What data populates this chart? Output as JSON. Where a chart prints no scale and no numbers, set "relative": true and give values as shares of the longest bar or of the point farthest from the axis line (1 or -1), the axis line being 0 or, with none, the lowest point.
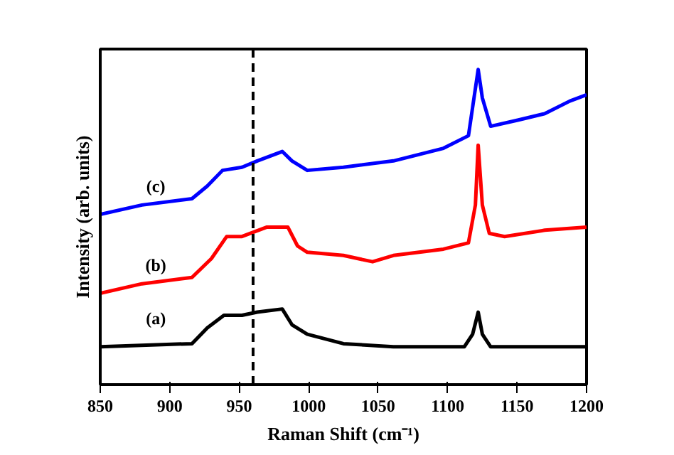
{
  "chart_data": {
    "type": "line",
    "relative": true,
    "xlabel": "Raman Shift (cm⁻¹)",
    "ylabel": "Intensity (arb. units)",
    "xlim": [
      850,
      1200
    ],
    "xticks": [
      850,
      900,
      950,
      1000,
      1050,
      1100,
      1150,
      1200
    ],
    "grid": false,
    "marker": "none",
    "line_style": "solid",
    "series": [
      {
        "name": "(a)",
        "color": "#000000",
        "x": [
          850,
          916,
          927,
          939,
          952,
          963,
          981,
          988,
          999,
          1025,
          1061,
          1112,
          1118,
          1122,
          1125,
          1131,
          1200
        ],
        "values": [
          0.12,
          0.13,
          0.18,
          0.22,
          0.22,
          0.23,
          0.24,
          0.19,
          0.16,
          0.13,
          0.12,
          0.12,
          0.16,
          0.23,
          0.16,
          0.12,
          0.12
        ]
      },
      {
        "name": "(b)",
        "color": "#ff0000",
        "x": [
          850,
          880,
          916,
          930,
          941,
          952,
          970,
          985,
          992,
          999,
          1025,
          1046,
          1061,
          1097,
          1115,
          1120,
          1122,
          1125,
          1130,
          1141,
          1170,
          1200
        ],
        "values": [
          0.29,
          0.32,
          0.34,
          0.4,
          0.47,
          0.47,
          0.5,
          0.5,
          0.44,
          0.42,
          0.41,
          0.39,
          0.41,
          0.43,
          0.45,
          0.57,
          0.76,
          0.57,
          0.48,
          0.47,
          0.49,
          0.5
        ]
      },
      {
        "name": "(c)",
        "color": "#0000ff",
        "x": [
          850,
          880,
          916,
          927,
          938,
          952,
          963,
          981,
          988,
          999,
          1025,
          1061,
          1097,
          1115,
          1118,
          1122,
          1125,
          1131,
          1151,
          1170,
          1188,
          1200
        ],
        "values": [
          0.54,
          0.57,
          0.59,
          0.63,
          0.68,
          0.69,
          0.71,
          0.74,
          0.71,
          0.68,
          0.69,
          0.71,
          0.75,
          0.79,
          0.88,
          1.0,
          0.91,
          0.82,
          0.84,
          0.86,
          0.9,
          0.92
        ]
      }
    ],
    "ref_lines": [
      {
        "axis": "x",
        "value": 960,
        "color": "#000000",
        "line_style": "dashed"
      }
    ]
  }
}
